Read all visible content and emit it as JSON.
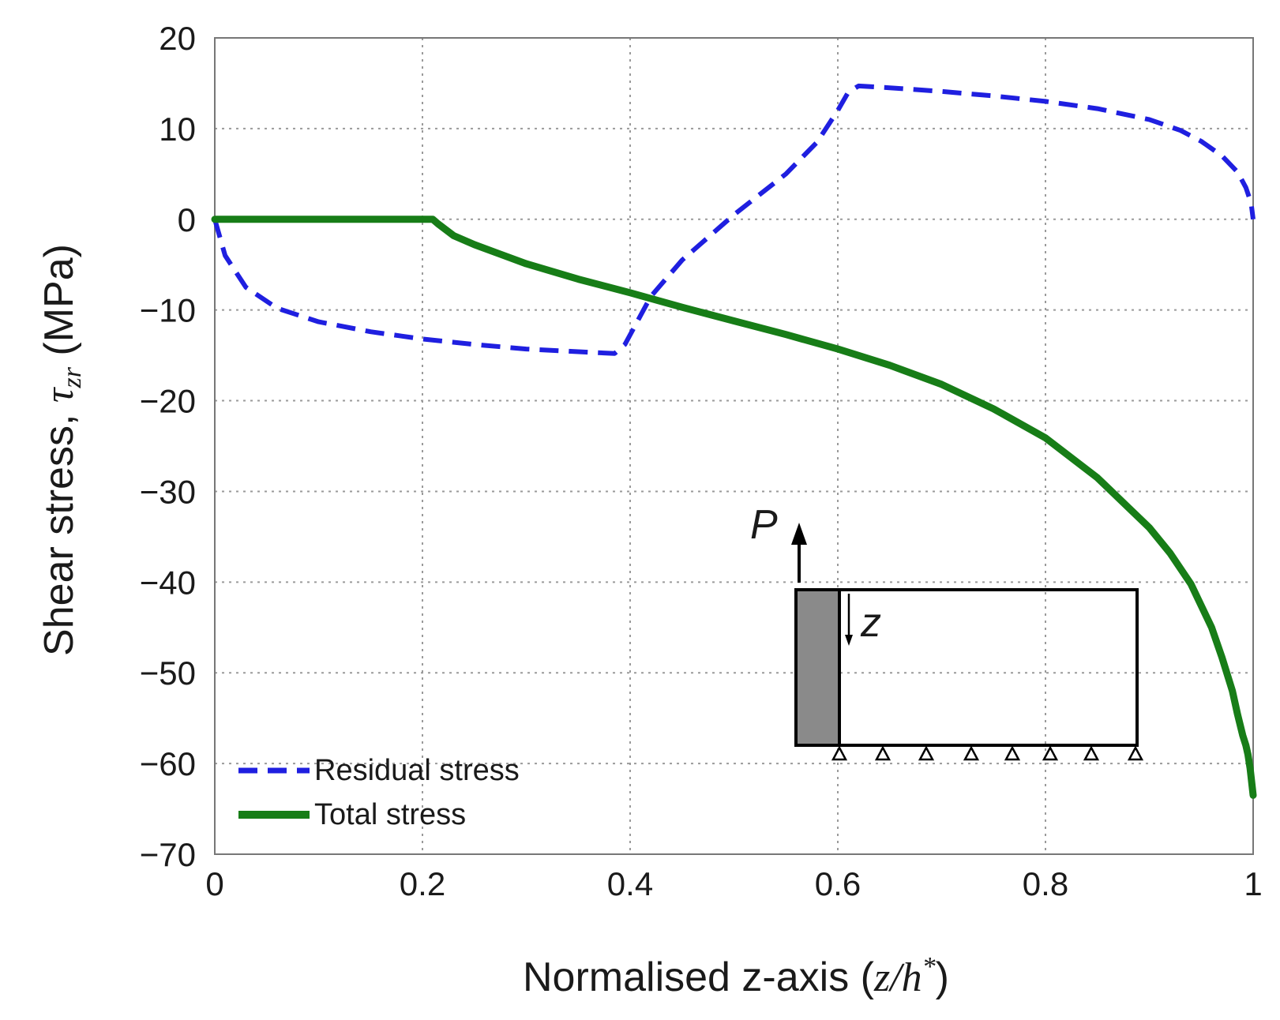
{
  "chart_data": {
    "type": "line",
    "title": "",
    "xlabel": {
      "prefix": "Normalised z-axis (",
      "math": "z/h",
      "superscript": "*",
      "suffix": ")"
    },
    "ylabel": {
      "prefix": "Shear stress, ",
      "math_main": "τ",
      "math_sub": "zr",
      "suffix": " (MPa)"
    },
    "xlim": [
      0,
      1
    ],
    "ylim": [
      -70,
      20
    ],
    "xticks": [
      0,
      0.2,
      0.4,
      0.6,
      0.8,
      1
    ],
    "xtick_labels": [
      "0",
      "0.2",
      "0.4",
      "0.6",
      "0.8",
      "1"
    ],
    "yticks": [
      20,
      10,
      0,
      -10,
      -20,
      -30,
      -40,
      -50,
      -60,
      -70
    ],
    "ytick_labels": [
      "20",
      "10",
      "0",
      "−10",
      "−20",
      "−30",
      "−40",
      "−50",
      "−60",
      "−70"
    ],
    "grid": true,
    "legend_position": "bottom-left",
    "series": [
      {
        "name": "Residual stress",
        "color": "#1f1fe0",
        "style": "dashed",
        "x": [
          0,
          0.01,
          0.03,
          0.06,
          0.1,
          0.15,
          0.2,
          0.25,
          0.3,
          0.35,
          0.385,
          0.395,
          0.42,
          0.45,
          0.5,
          0.55,
          0.58,
          0.6,
          0.61,
          0.62,
          0.65,
          0.7,
          0.75,
          0.8,
          0.85,
          0.9,
          0.93,
          0.95,
          0.97,
          0.985,
          0.993,
          0.998,
          1.0
        ],
        "y": [
          0,
          -4,
          -7.5,
          -9.8,
          -11.3,
          -12.4,
          -13.2,
          -13.8,
          -14.3,
          -14.6,
          -14.8,
          -13.8,
          -8.5,
          -4.5,
          0.5,
          5,
          8.5,
          12,
          14,
          14.7,
          14.5,
          14.1,
          13.6,
          13,
          12.2,
          11,
          9.8,
          8.6,
          7,
          5.2,
          3.5,
          1.8,
          0
        ]
      },
      {
        "name": "Total stress",
        "color": "#177d17",
        "style": "solid",
        "x": [
          0,
          0.1,
          0.21,
          0.215,
          0.23,
          0.25,
          0.3,
          0.35,
          0.4,
          0.45,
          0.5,
          0.55,
          0.6,
          0.65,
          0.7,
          0.75,
          0.8,
          0.85,
          0.9,
          0.92,
          0.94,
          0.96,
          0.97,
          0.98,
          0.985,
          0.99,
          0.993,
          0.995,
          0.997,
          0.998,
          1.0
        ],
        "y": [
          0,
          0,
          0,
          -0.5,
          -1.8,
          -2.8,
          -4.9,
          -6.6,
          -8.1,
          -9.7,
          -11.2,
          -12.7,
          -14.3,
          -16.1,
          -18.2,
          -20.9,
          -24.1,
          -28.5,
          -34,
          -36.8,
          -40.2,
          -45,
          -48.3,
          -52,
          -54.6,
          -56.9,
          -58,
          -59,
          -60.5,
          -61.5,
          -63.5
        ]
      }
    ],
    "inset": {
      "force_label": "P",
      "axis_label": "z"
    }
  }
}
